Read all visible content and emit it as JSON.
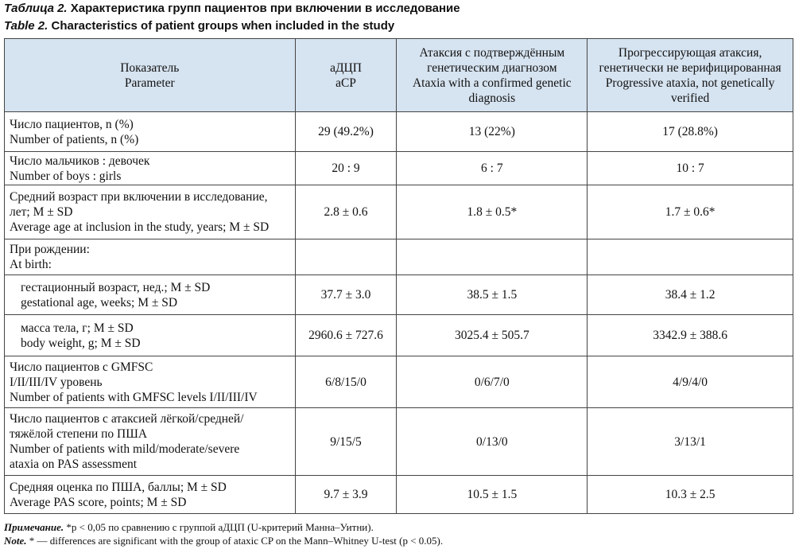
{
  "caption_ru": {
    "label": "Таблица 2.",
    "text": "Характеристика групп пациентов при включении в исследование"
  },
  "caption_en": {
    "label": "Table 2.",
    "text": "Characteristics of patient groups when included in the study"
  },
  "table": {
    "header": [
      [
        "Показатель",
        "Parameter"
      ],
      [
        "аДЦП",
        "aCP"
      ],
      [
        "Атаксия с подтверждённым",
        "генетическим диагнозом",
        "Ataxia with a confirmed genetic",
        "diagnosis"
      ],
      [
        "Прогрессирующая атаксия,",
        "генетически не верифицированная",
        "Progressive ataxia, not genetically",
        "verified"
      ]
    ],
    "rows": [
      {
        "label": [
          "Число пациентов, n (%)",
          "Number of patients, n (%)"
        ],
        "values": [
          "29 (49.2%)",
          "13 (22%)",
          "17 (28.8%)"
        ]
      },
      {
        "label": [
          "Число мальчиков : девочек",
          "Number of boys : girls"
        ],
        "values": [
          "20 : 9",
          "6 : 7",
          "10 : 7"
        ]
      },
      {
        "label": [
          "Средний возраст при включении в исследование,",
          "лет; M ± SD",
          "Average age at inclusion in the study, years; M ± SD"
        ],
        "values": [
          "2.8 ± 0.6",
          "1.8 ± 0.5*",
          "1.7 ± 0.6*"
        ]
      },
      {
        "label": [
          "При рождении:",
          "At birth:"
        ],
        "values": []
      },
      {
        "label": [
          "гестационный возраст, нед.; M ± SD",
          "gestational age, weeks; M ± SD"
        ],
        "values": [
          "37.7 ± 3.0",
          "38.5 ± 1.5",
          "38.4 ± 1.2"
        ]
      },
      {
        "label": [
          "масса тела, г; M ± SD",
          "body weight, g; M ± SD"
        ],
        "values": [
          "2960.6 ± 727.6",
          "3025.4 ± 505.7",
          "3342.9 ± 388.6"
        ]
      },
      {
        "label": [
          "Число пациентов с GMFSC",
          "I/II/III/IV уровень",
          "Number of patients with GMFSC levels I/II/III/IV"
        ],
        "values": [
          "6/8/15/0",
          "0/6/7/0",
          "4/9/4/0"
        ]
      },
      {
        "label": [
          "Число пациентов с атаксией лёгкой/средней/",
          "тяжёлой степени по ПША",
          "Number of patients with mild/moderate/severe",
          "ataxia on PAS assessment"
        ],
        "values": [
          "9/15/5",
          "0/13/0",
          "3/13/1"
        ]
      },
      {
        "label": [
          "Средняя оценка по ПША, баллы; M ± SD",
          "Average PAS score, points; M ± SD"
        ],
        "values": [
          "9.7 ± 3.9",
          "10.5 ± 1.5",
          "10.3 ± 2.5"
        ]
      }
    ]
  },
  "notes": [
    {
      "label": "Примечание.",
      "text": "*p < 0,05 по сравнению с группой аДЦП (U-критерий Манна–Уитни)."
    },
    {
      "label": "Note.",
      "text": "* — differences are significant with the group of ataxic CP on the Mann–Whitney U-test (p < 0.05)."
    }
  ]
}
